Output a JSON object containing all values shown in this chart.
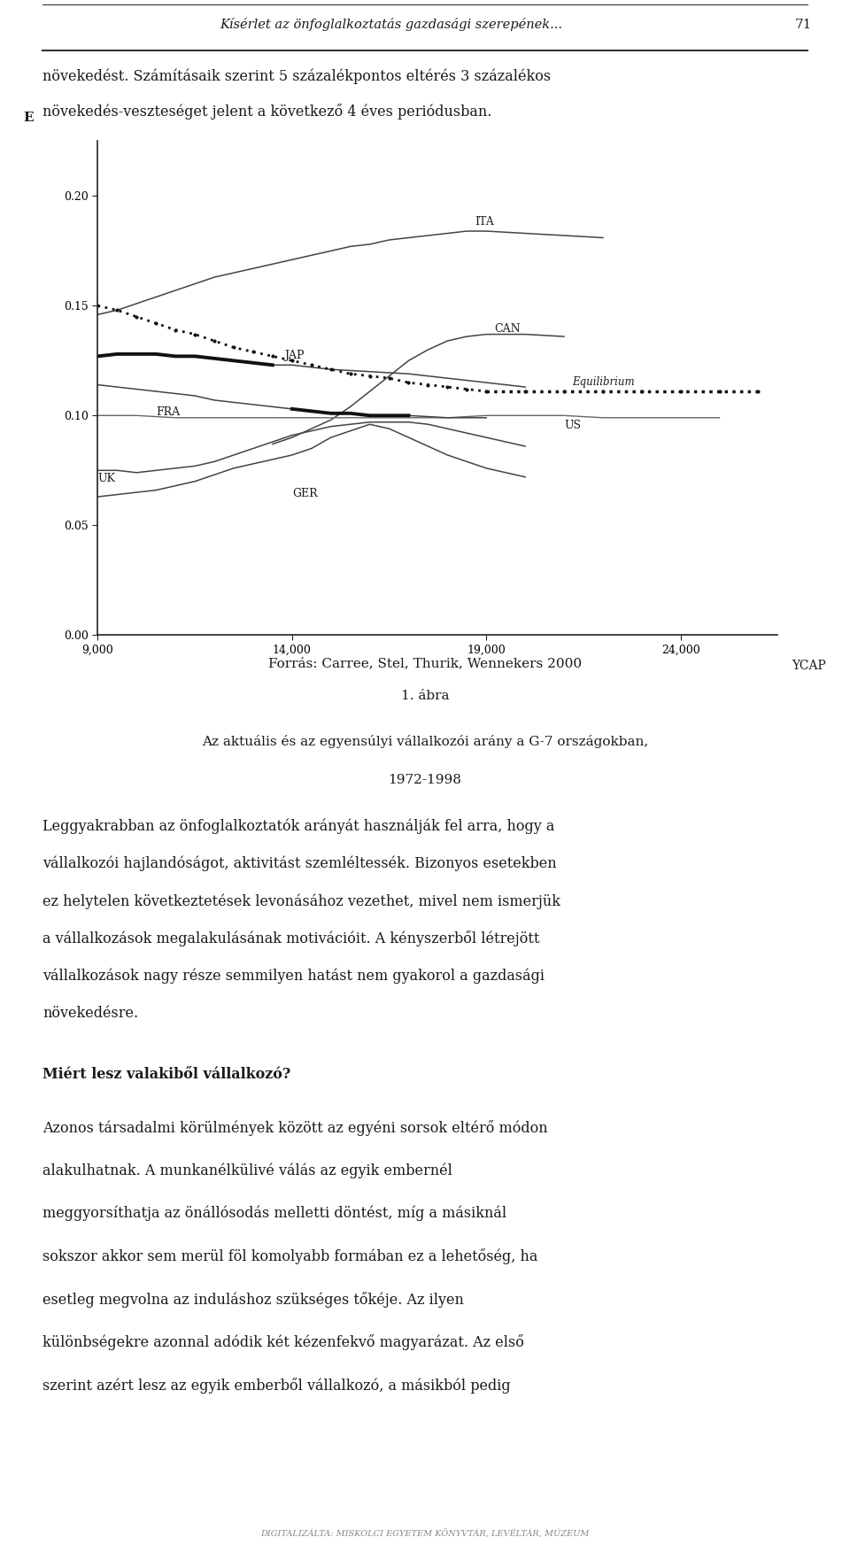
{
  "page_header_italic": "Kísérlet az önfoglalkoztatás gazdasági szerepének...",
  "page_number": "71",
  "intro_line1": "növekedést. Számításaik szerint 5 százalékpontos eltérés 3 százalékos",
  "intro_line2": "növekedés-veszteséget jelent a következő 4 éves periódusban.",
  "chart_ylabel": "E",
  "chart_xlabel": "YCAP",
  "yticks": [
    0.0,
    0.05,
    0.1,
    0.15,
    0.2
  ],
  "xticks": [
    9000,
    14000,
    19000,
    24000
  ],
  "xtick_labels": [
    "9,000",
    "14,000",
    "19,000",
    "24,000"
  ],
  "ylim": [
    0.0,
    0.225
  ],
  "xlim": [
    9000,
    26500
  ],
  "source_text": "Forrás: Carree, Stel, Thurik, Wennekers 2000",
  "figure_label": "1. ábra",
  "figure_caption_line1": "Az aktuális és az egyensúlyi vállalkozói arány a G-7 országokban,",
  "figure_caption_line2": "1972-1998",
  "body_text1_lines": [
    "Leggyakrabban az önfoglalkoztatók arányát használják fel arra, hogy a",
    "vállalkozói hajlandóságot, aktivitást szemléltessék. Bizonyos esetekben",
    "ez helytelen következtetések levonásához vezethet, mivel nem ismerjük",
    "a vállalkozások megalakulásának motivációit. A kényszerből létrejött",
    "vállalkozások nagy része semmilyen hatást nem gyakorol a gazdasági",
    "növekedésre."
  ],
  "subheading": "Miért lesz valakiből vállalkozó?",
  "body_text2_lines": [
    "Azonos társadalmi körülmények között az egyéni sorsok eltérő módon",
    "alakulhatnak. A munkanélkülivé válás az egyik embernél",
    "meggyorsíthatja az önállósodás melletti döntést, míg a másiknál",
    "sokszor akkor sem merül föl komolyabb formában ez a lehetőség, ha",
    "esetleg megvolna az induláshoz szükséges tőkéje. Az ilyen",
    "különbségekre azonnal adódik két kézenfekvő magyarázat. Az első",
    "szerint azért lesz az egyik emberből vállalkozó, a másikból pedig"
  ],
  "footer_text": "DIGITALIZÁLTA: MISKOLCI EGYETEM KÖNYVTÁR, LEVÉLTÁR, MÚZEUM",
  "bg_color": "#ffffff",
  "text_color": "#1a1a1a",
  "line_color": "#333333"
}
